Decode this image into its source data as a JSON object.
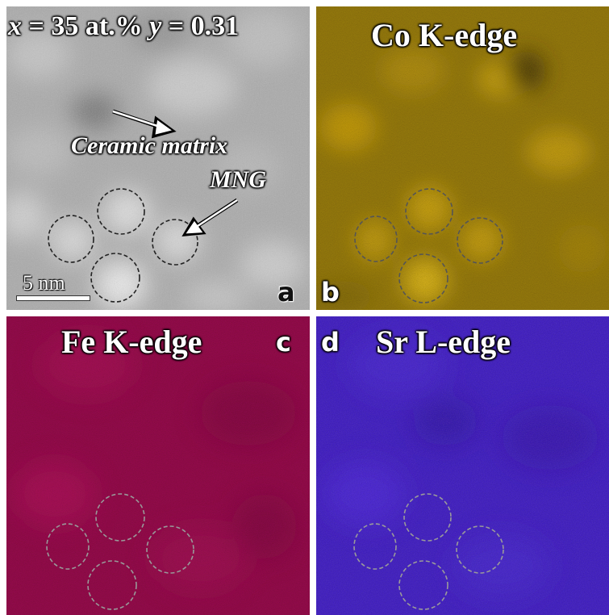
{
  "panels": {
    "a": {
      "letter": "a",
      "title_x": "x",
      "title_eq1": " = 35 at.% ",
      "title_y": "y",
      "title_eq2": " = 0.31",
      "annotation_matrix": "Ceramic matrix",
      "annotation_mng": "MNG",
      "scale_label": "5 nm",
      "tint": "#d8d8d8"
    },
    "b": {
      "letter": "b",
      "title": "Co K-edge",
      "tint": "#c8a010"
    },
    "c": {
      "letter": "c",
      "title": "Fe K-edge",
      "tint": "#b01050"
    },
    "d": {
      "letter": "d",
      "title": "Sr L-edge",
      "tint": "#3c1ee0"
    }
  }
}
